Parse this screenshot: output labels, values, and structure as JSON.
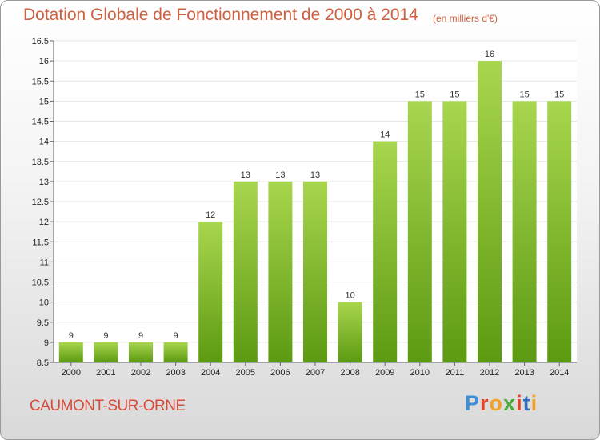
{
  "header": {
    "title": "Dotation Globale de Fonctionnement de 2000 à 2014",
    "subtitle": "(en milliers d'€)"
  },
  "footer": {
    "commune": "CAUMONT-SUR-ORNE",
    "logo": {
      "letters": [
        "P",
        "r",
        "o",
        "x",
        "i",
        "t",
        "i"
      ],
      "colors": [
        "#3a8fd8",
        "#e0442a",
        "#f2a126",
        "#4caa3a",
        "#e0442a",
        "#2e6fc0",
        "#f2a126"
      ]
    }
  },
  "colors": {
    "bar_light": "#a8d64e",
    "bar_dark": "#5c9a12",
    "grid": "#e6e6e6"
  },
  "chart_data": {
    "type": "bar",
    "categories": [
      "2000",
      "2001",
      "2002",
      "2003",
      "2004",
      "2005",
      "2006",
      "2007",
      "2008",
      "2009",
      "2010",
      "2011",
      "2012",
      "2013",
      "2014"
    ],
    "values": [
      9,
      9,
      9,
      9,
      12,
      13,
      13,
      13,
      10,
      14,
      15,
      15,
      16,
      15,
      15
    ],
    "ylim": [
      8.5,
      16.5
    ],
    "yticks": [
      "8.5",
      "9",
      "9.5",
      "10",
      "10.5",
      "11",
      "11.5",
      "12",
      "12.5",
      "13",
      "13.5",
      "14",
      "14.5",
      "15",
      "15.5",
      "16",
      "16.5"
    ],
    "grid": true,
    "legend": "none"
  }
}
